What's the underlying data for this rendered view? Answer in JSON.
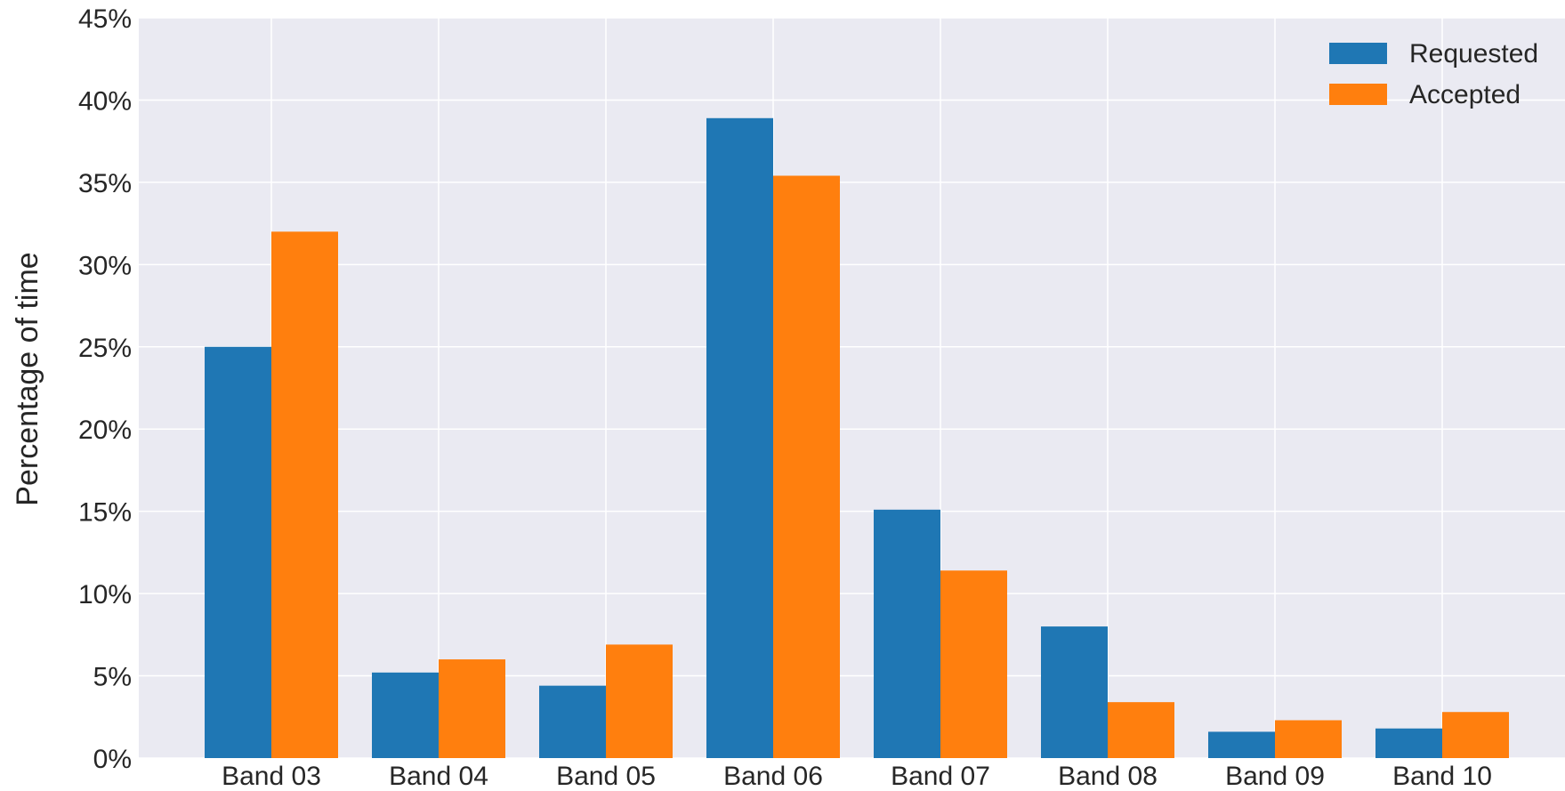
{
  "chart_data": {
    "type": "bar",
    "title": "",
    "xlabel": "",
    "ylabel": "Percentage of time",
    "ylim": [
      0,
      45
    ],
    "y_ticks": [
      0,
      5,
      10,
      15,
      20,
      25,
      30,
      35,
      40,
      45
    ],
    "y_tick_format": "percent",
    "grid": true,
    "legend_position": "top-right",
    "categories": [
      "Band 03",
      "Band 04",
      "Band 05",
      "Band 06",
      "Band 07",
      "Band 08",
      "Band 09",
      "Band 10"
    ],
    "series": [
      {
        "name": "Requested",
        "color": "#1f77b4",
        "values": [
          25.0,
          5.2,
          4.4,
          38.9,
          15.1,
          8.0,
          1.6,
          1.8
        ]
      },
      {
        "name": "Accepted",
        "color": "#ff7f0e",
        "values": [
          32.0,
          6.0,
          6.9,
          35.4,
          11.4,
          3.4,
          2.3,
          2.8
        ]
      }
    ]
  },
  "style": {
    "plot_background": "#eaeaf2",
    "grid_color": "#ffffff",
    "text_color": "#262626"
  }
}
